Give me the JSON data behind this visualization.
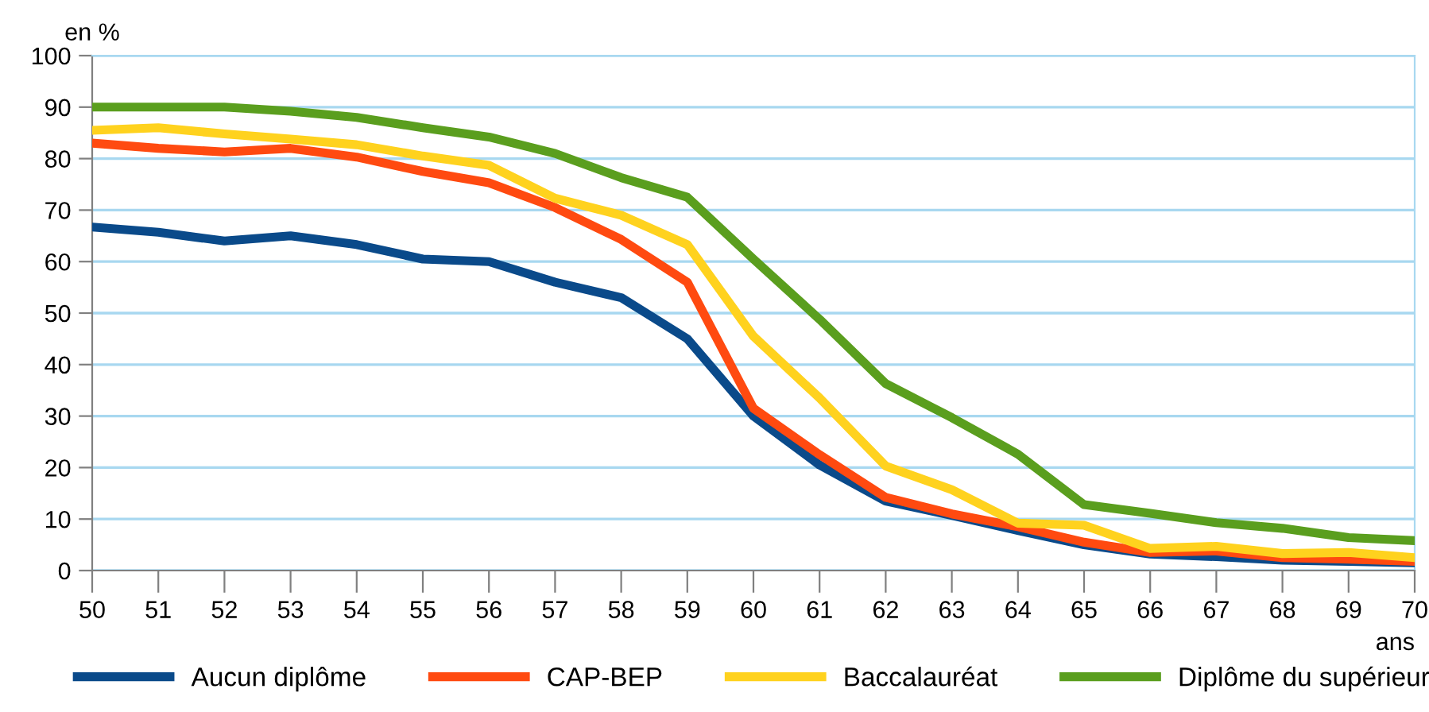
{
  "chart_data": {
    "type": "line",
    "ylabel": "en %",
    "xlabel": "ans",
    "x": [
      50,
      51,
      52,
      53,
      54,
      55,
      56,
      57,
      58,
      59,
      60,
      61,
      62,
      63,
      64,
      65,
      66,
      67,
      68,
      69,
      70
    ],
    "xlim": [
      50,
      70
    ],
    "xticks": [
      50,
      51,
      52,
      53,
      54,
      55,
      56,
      57,
      58,
      59,
      60,
      61,
      62,
      63,
      64,
      65,
      66,
      67,
      68,
      69,
      70
    ],
    "ylim": [
      0,
      100
    ],
    "yticks": [
      0,
      10,
      20,
      30,
      40,
      50,
      60,
      70,
      80,
      90,
      100
    ],
    "grid": "y",
    "legend": "bottom",
    "marker": "none",
    "line_style": "solid",
    "series": [
      {
        "name": "Aucun diplôme",
        "color": "#0a4a8a",
        "values": [
          66.7,
          65.7,
          64,
          65,
          63.3,
          60.5,
          60,
          56,
          53,
          45,
          30,
          20.5,
          13.5,
          10.7,
          7.8,
          5,
          3.2,
          2.7,
          2,
          1.8,
          1.5
        ]
      },
      {
        "name": "CAP-BEP",
        "color": "#ff4a10",
        "values": [
          83,
          82,
          81.3,
          82,
          80.3,
          77.5,
          75.3,
          70.5,
          64.3,
          56,
          31.5,
          22.5,
          14.2,
          11,
          8.5,
          5.5,
          3.5,
          3.8,
          2.5,
          2.2,
          1.8
        ]
      },
      {
        "name": "Baccalauréat",
        "color": "#ffd21e",
        "values": [
          85.5,
          86,
          84.8,
          83.8,
          82.7,
          80.5,
          78.7,
          72.3,
          69,
          63.3,
          45.5,
          33.5,
          20.3,
          15.7,
          9.2,
          8.8,
          4.3,
          4.7,
          3.3,
          3.5,
          2.5
        ]
      },
      {
        "name": "Diplôme du supérieur",
        "color": "#5a9e1e",
        "values": [
          90,
          90,
          90,
          89.2,
          88,
          86,
          84.2,
          81,
          76.3,
          72.5,
          60.5,
          48.8,
          36.3,
          29.7,
          22.6,
          12.8,
          11.1,
          9.3,
          8.2,
          6.4,
          5.8
        ]
      }
    ]
  }
}
